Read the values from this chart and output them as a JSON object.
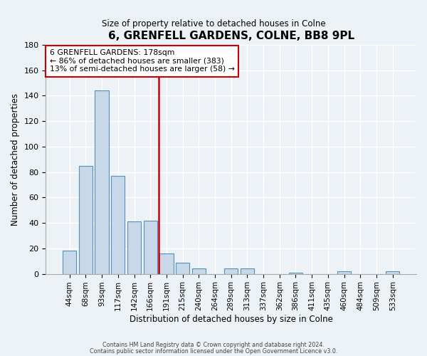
{
  "title": "6, GRENFELL GARDENS, COLNE, BB8 9PL",
  "subtitle": "Size of property relative to detached houses in Colne",
  "xlabel": "Distribution of detached houses by size in Colne",
  "ylabel": "Number of detached properties",
  "bar_labels": [
    "44sqm",
    "68sqm",
    "93sqm",
    "117sqm",
    "142sqm",
    "166sqm",
    "191sqm",
    "215sqm",
    "240sqm",
    "264sqm",
    "289sqm",
    "313sqm",
    "337sqm",
    "362sqm",
    "386sqm",
    "411sqm",
    "435sqm",
    "460sqm",
    "484sqm",
    "509sqm",
    "533sqm"
  ],
  "bar_values": [
    18,
    85,
    144,
    77,
    41,
    42,
    16,
    9,
    4,
    0,
    4,
    4,
    0,
    0,
    1,
    0,
    0,
    2,
    0,
    0,
    2
  ],
  "bar_color": "#c8d8e8",
  "bar_edge_color": "#5590b8",
  "vline_index": 6,
  "vline_color": "#cc0000",
  "annotation_title": "6 GRENFELL GARDENS: 178sqm",
  "annotation_line1": "← 86% of detached houses are smaller (383)",
  "annotation_line2": "13% of semi-detached houses are larger (58) →",
  "annotation_box_facecolor": "#ffffff",
  "annotation_box_edgecolor": "#cc0000",
  "ylim": [
    0,
    180
  ],
  "yticks": [
    0,
    20,
    40,
    60,
    80,
    100,
    120,
    140,
    160,
    180
  ],
  "bg_color": "#edf2f7",
  "footer1": "Contains HM Land Registry data © Crown copyright and database right 2024.",
  "footer2": "Contains public sector information licensed under the Open Government Licence v3.0."
}
